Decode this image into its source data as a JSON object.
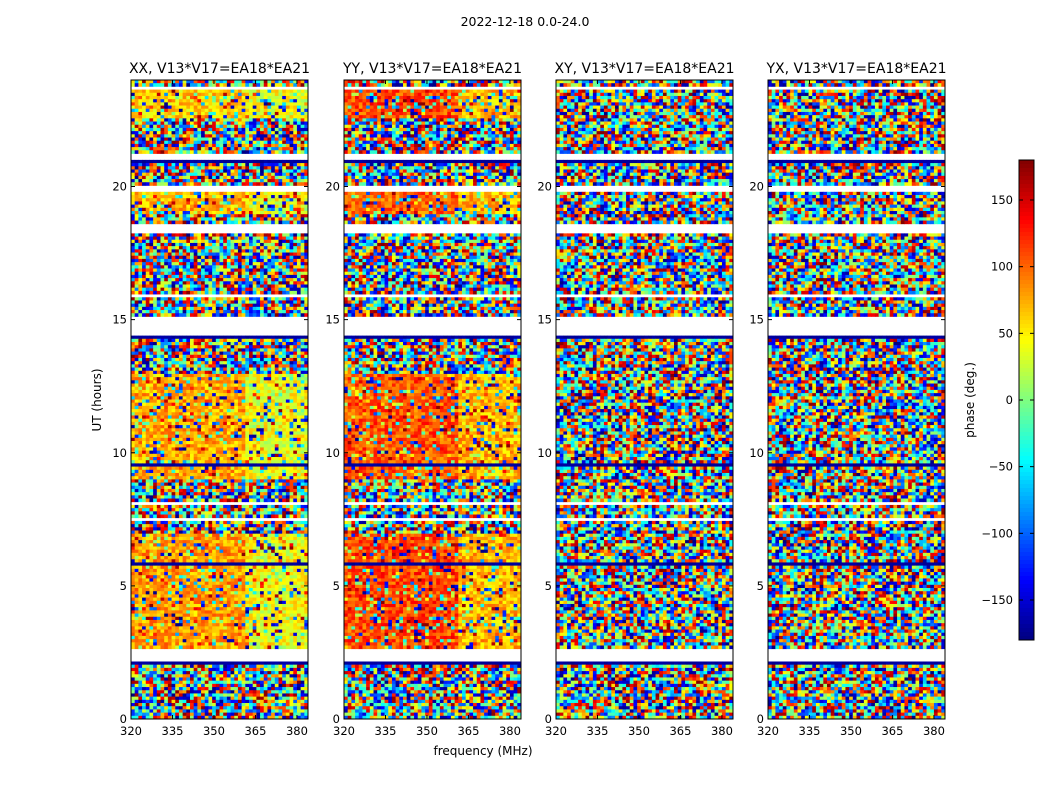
{
  "figure": {
    "suptitle": "2022-12-18 0.0-24.0"
  },
  "chart_data": {
    "type": "heatmap",
    "xlabel": "frequency (MHz)",
    "ylabel": "UT (hours)",
    "xlim": [
      320,
      384
    ],
    "ylim": [
      0,
      24
    ],
    "xticks": [
      "320",
      "335",
      "350",
      "365",
      "380"
    ],
    "xtick_values": [
      320,
      335,
      350,
      365,
      380
    ],
    "yticks": [
      "0",
      "5",
      "10",
      "15",
      "20"
    ],
    "ytick_values": [
      0,
      5,
      10,
      15,
      20
    ],
    "colormap": "jet",
    "panels": [
      {
        "title": "XX, V13*V17=EA18*EA21",
        "coherent_bands": [
          {
            "ut": [
              2.6,
              6.9
            ],
            "freq_split": 361,
            "phase_low": 80,
            "phase_high": 40
          },
          {
            "ut": [
              9.0,
              13.0
            ],
            "freq_split": 361,
            "phase_low": 75,
            "phase_high": 40
          },
          {
            "ut": [
              19.0,
              19.8
            ],
            "freq_split": 361,
            "phase_low": 70,
            "phase_high": 40
          },
          {
            "ut": [
              22.6,
              23.6
            ],
            "freq_split": 361,
            "phase_low": 60,
            "phase_high": 40
          }
        ]
      },
      {
        "title": "YY, V13*V17=EA18*EA21",
        "coherent_bands": [
          {
            "ut": [
              2.6,
              6.9
            ],
            "freq_split": 361,
            "phase_low": 110,
            "phase_high": 70
          },
          {
            "ut": [
              9.0,
              13.0
            ],
            "freq_split": 361,
            "phase_low": 105,
            "phase_high": 70
          },
          {
            "ut": [
              19.0,
              19.8
            ],
            "freq_split": 361,
            "phase_low": 100,
            "phase_high": 70
          },
          {
            "ut": [
              22.6,
              23.6
            ],
            "freq_split": 361,
            "phase_low": 110,
            "phase_high": 70
          }
        ]
      },
      {
        "title": "XY, V13*V17=EA18*EA21",
        "coherent_bands": []
      },
      {
        "title": "YX, V13*V17=EA18*EA21",
        "coherent_bands": []
      }
    ],
    "blank_ut_ranges": [
      [
        2.2,
        2.65
      ],
      [
        14.4,
        15.1
      ],
      [
        15.8,
        16.0
      ],
      [
        18.2,
        18.6
      ],
      [
        7.4,
        7.6
      ],
      [
        8.0,
        8.2
      ],
      [
        19.8,
        20.0
      ],
      [
        21.0,
        21.2
      ],
      [
        23.6,
        23.8
      ]
    ],
    "dark_ut_rows": [
      [
        2.0,
        2.2
      ],
      [
        14.3,
        14.4
      ],
      [
        9.5,
        9.6
      ],
      [
        8.6,
        8.7
      ],
      [
        5.8,
        5.9
      ],
      [
        20.9,
        21.0
      ]
    ],
    "colorbar": {
      "label": "phase (deg.)",
      "range": [
        -180,
        180
      ],
      "ticks": [
        "150",
        "100",
        "50",
        "0",
        "−50",
        "−100",
        "−150"
      ],
      "tick_values": [
        150,
        100,
        50,
        0,
        -50,
        -100,
        -150
      ]
    }
  }
}
